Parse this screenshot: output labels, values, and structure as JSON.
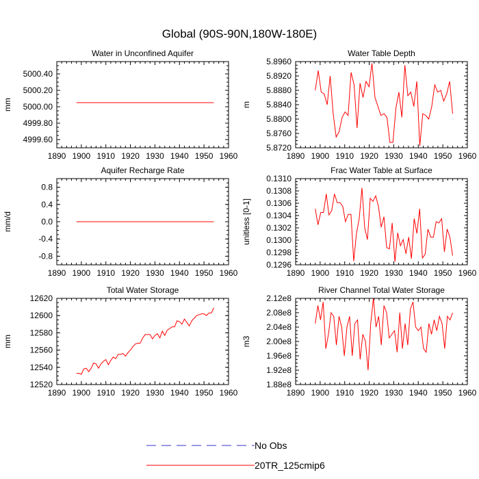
{
  "figure_title": "Global (90S-90N,180W-180E)",
  "colors": {
    "model": "#ff0000",
    "obs": "#3333cc",
    "axis": "#000000"
  },
  "legend": [
    {
      "label": "No Obs",
      "style": "dashed",
      "color": "#3333cc"
    },
    {
      "label": "20TR_125cmip6",
      "style": "solid",
      "color": "#ff0000"
    }
  ],
  "chart_data": [
    {
      "type": "line",
      "title": "Water in Unconfined Aquifer",
      "ylabel": "mm",
      "xlabel": "",
      "xlim": [
        1890,
        1960
      ],
      "ylim": [
        4999.5,
        5000.55
      ],
      "xticks": [
        1890,
        1900,
        1910,
        1920,
        1930,
        1940,
        1950,
        1960
      ],
      "yticks": [
        4999.6,
        4999.8,
        5000.0,
        5000.2,
        5000.4
      ],
      "ytick_labels": [
        "4999.60",
        "4999.80",
        "5000.00",
        "5000.20",
        "5000.40"
      ],
      "x_start": 1898,
      "series": [
        {
          "name": "20TR_125cmip6",
          "values": [
            5000.05,
            5000.05,
            5000.05,
            5000.05,
            5000.05,
            5000.05,
            5000.05,
            5000.05,
            5000.05,
            5000.05,
            5000.05,
            5000.05,
            5000.05,
            5000.05,
            5000.05,
            5000.05,
            5000.05,
            5000.05,
            5000.05,
            5000.05,
            5000.05,
            5000.05,
            5000.05,
            5000.05,
            5000.05,
            5000.05,
            5000.05,
            5000.05,
            5000.05,
            5000.05,
            5000.05,
            5000.05,
            5000.05,
            5000.05,
            5000.05,
            5000.05,
            5000.05,
            5000.05,
            5000.05,
            5000.05,
            5000.05,
            5000.05,
            5000.05,
            5000.05,
            5000.05,
            5000.05,
            5000.05
          ]
        }
      ]
    },
    {
      "type": "line",
      "title": "Water Table Depth",
      "ylabel": "m",
      "xlabel": "",
      "xlim": [
        1890,
        1960
      ],
      "ylim": [
        5.872,
        5.896
      ],
      "xticks": [
        1890,
        1900,
        1910,
        1920,
        1930,
        1940,
        1950,
        1960
      ],
      "yticks": [
        5.872,
        5.876,
        5.88,
        5.884,
        5.888,
        5.892,
        5.896
      ],
      "ytick_labels": [
        "5.8720",
        "5.8760",
        "5.8800",
        "5.8840",
        "5.8880",
        "5.8920",
        "5.8960"
      ],
      "x_start": 1898,
      "series": [
        {
          "name": "20TR_125cmip6",
          "values": [
            5.888,
            5.8935,
            5.8875,
            5.887,
            5.884,
            5.892,
            5.8815,
            5.875,
            5.8765,
            5.8805,
            5.882,
            5.881,
            5.893,
            5.8895,
            5.8775,
            5.89,
            5.886,
            5.8905,
            5.889,
            5.8955,
            5.886,
            5.8835,
            5.881,
            5.8815,
            5.8805,
            5.8735,
            5.8735,
            5.883,
            5.8875,
            5.8805,
            5.895,
            5.8865,
            5.8875,
            5.8835,
            5.8905,
            5.8725,
            5.8815,
            5.881,
            5.88,
            5.8835,
            5.8895,
            5.8875,
            5.888,
            5.885,
            5.887,
            5.8905,
            5.8815
          ]
        }
      ]
    },
    {
      "type": "line",
      "title": "Aquifer Recharge Rate",
      "ylabel": "mm/d",
      "xlabel": "",
      "xlim": [
        1890,
        1960
      ],
      "ylim": [
        -1.0,
        1.0
      ],
      "xticks": [
        1890,
        1900,
        1910,
        1920,
        1930,
        1940,
        1950,
        1960
      ],
      "yticks": [
        -0.8,
        -0.4,
        0.0,
        0.4,
        0.8
      ],
      "ytick_labels": [
        "-0.8",
        "-0.4",
        "0.0",
        "0.4",
        "0.8"
      ],
      "x_start": 1898,
      "series": [
        {
          "name": "20TR_125cmip6",
          "values": [
            0,
            0,
            0,
            0,
            0,
            0,
            0,
            0,
            0,
            0,
            0,
            0,
            0,
            0,
            0,
            0,
            0,
            0,
            0,
            0,
            0,
            0,
            0,
            0,
            0,
            0,
            0,
            0,
            0,
            0,
            0,
            0,
            0,
            0,
            0,
            0,
            0,
            0,
            0,
            0,
            0,
            0,
            0,
            0,
            0,
            0,
            0
          ]
        }
      ]
    },
    {
      "type": "line",
      "title": "Frac Water Table at Surface",
      "ylabel": "unitless [0-1]",
      "xlabel": "",
      "xlim": [
        1890,
        1960
      ],
      "ylim": [
        0.1296,
        0.131
      ],
      "xticks": [
        1890,
        1900,
        1910,
        1920,
        1930,
        1940,
        1950,
        1960
      ],
      "yticks": [
        0.1296,
        0.1298,
        0.13,
        0.1302,
        0.1304,
        0.1306,
        0.1308,
        0.131
      ],
      "ytick_labels": [
        "0.1296",
        "0.1298",
        "0.1300",
        "0.1302",
        "0.1304",
        "0.1306",
        "0.1308",
        "0.1310"
      ],
      "x_start": 1898,
      "series": [
        {
          "name": "20TR_125cmip6",
          "values": [
            0.13051,
            0.13025,
            0.13045,
            0.13045,
            0.13075,
            0.13041,
            0.13048,
            0.13075,
            0.13061,
            0.13061,
            0.13055,
            0.1303,
            0.13042,
            0.13042,
            0.12966,
            0.13011,
            0.13035,
            0.13085,
            0.1302,
            0.13001,
            0.13068,
            0.13063,
            0.13072,
            0.13055,
            0.13021,
            0.13038,
            0.12988,
            0.12986,
            0.13028,
            0.12965,
            0.13012,
            0.12991,
            0.13001,
            0.12978,
            0.13005,
            0.1297,
            0.13035,
            0.13011,
            0.13051,
            0.12971,
            0.12977,
            0.13018,
            0.13005,
            0.13005,
            0.1303,
            0.13028,
            0.13035,
            0.12981,
            0.13018,
            0.13005,
            0.12975
          ]
        }
      ]
    },
    {
      "type": "line",
      "title": "Total Water Storage",
      "ylabel": "mm",
      "xlabel": "",
      "xlim": [
        1890,
        1960
      ],
      "ylim": [
        12520,
        12620
      ],
      "xticks": [
        1890,
        1900,
        1910,
        1920,
        1930,
        1940,
        1950,
        1960
      ],
      "yticks": [
        12520,
        12540,
        12560,
        12580,
        12600,
        12620
      ],
      "ytick_labels": [
        "12520",
        "12540",
        "12560",
        "12580",
        "12600",
        "12620"
      ],
      "x_start": 1898,
      "series": [
        {
          "name": "20TR_125cmip6",
          "values": [
            12533,
            12533,
            12532,
            12538,
            12539,
            12535,
            12539,
            12545,
            12544,
            12539,
            12544,
            12547,
            12549,
            12543,
            12548,
            12552,
            12550,
            12555,
            12555,
            12556,
            12553,
            12557,
            12560,
            12564,
            12567,
            12568,
            12568,
            12574,
            12578,
            12578,
            12578,
            12573,
            12577,
            12579,
            12574,
            12582,
            12577,
            12583,
            12585,
            12587,
            12587,
            12594,
            12593,
            12590,
            12596,
            12592,
            12588,
            12594,
            12597,
            12600,
            12601,
            12602,
            12602,
            12600,
            12603,
            12603,
            12609
          ]
        }
      ]
    },
    {
      "type": "line",
      "title": "River Channel Total Water Storage",
      "ylabel": "m3",
      "xlabel": "",
      "xlim": [
        1890,
        1960
      ],
      "ylim": [
        188000000.0,
        212000000.0
      ],
      "xticks": [
        1890,
        1900,
        1910,
        1920,
        1930,
        1940,
        1950,
        1960
      ],
      "yticks": [
        188000000.0,
        192000000.0,
        196000000.0,
        200000000.0,
        204000000.0,
        208000000.0,
        212000000.0
      ],
      "ytick_labels": [
        "1.88e8",
        "1.92e8",
        "1.96e8",
        "2.00e8",
        "2.04e8",
        "2.08e8",
        "2.12e8"
      ],
      "x_start": 1898,
      "series": [
        {
          "name": "20TR_125cmip6",
          "values": [
            205000000.0,
            210000000.0,
            206000000.0,
            211000000.0,
            198000000.0,
            202000000.0,
            208000000.0,
            207000000.0,
            199000000.0,
            207000000.0,
            204000000.0,
            196000000.0,
            204000000.0,
            207000000.0,
            196000000.0,
            205000000.0,
            206000000.0,
            195000000.0,
            202000000.0,
            200000000.0,
            192000000.0,
            205000000.0,
            212000000.0,
            204000000.0,
            207000000.0,
            199000000.0,
            210000000.0,
            208000000.0,
            201000000.0,
            202000000.0,
            203000000.0,
            197000000.0,
            208000000.0,
            198000000.0,
            205000000.0,
            199000000.0,
            209000000.0,
            211000000.0,
            204000000.0,
            203000000.0,
            204000000.0,
            198000000.0,
            197000000.0,
            205000000.0,
            202000000.0,
            206000000.0,
            203000000.0,
            207000000.0,
            205000000.0,
            198000000.0,
            207000000.0,
            206000000.0,
            208000000.0
          ]
        }
      ]
    }
  ]
}
